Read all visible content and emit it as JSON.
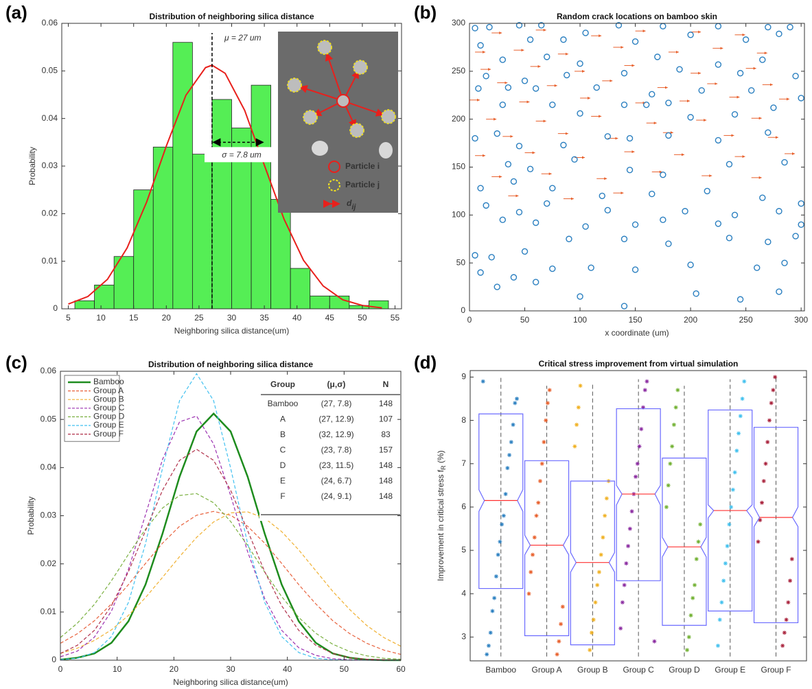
{
  "chart_data": [
    {
      "type": "histogram",
      "panel_label": "(a)",
      "title": "Distribution of neighboring silica distance",
      "x_label": "Neighboring silica distance(um)",
      "y_label": "Probability",
      "bins": [
        6,
        9,
        12,
        15,
        18,
        21,
        24,
        27,
        30,
        33,
        36,
        39,
        42,
        45,
        48,
        51,
        54
      ],
      "values": [
        0.0017,
        0.005,
        0.011,
        0.025,
        0.034,
        0.056,
        0.0325,
        0.044,
        0.038,
        0.047,
        0.023,
        0.0085,
        0.0027,
        0.0027,
        0.0007,
        0.0017
      ],
      "color": "#55ee55",
      "fit": {
        "color": "#e8201c",
        "x": [
          5,
          8,
          11,
          14,
          17,
          20,
          23,
          26,
          27,
          29,
          32,
          35,
          38,
          41,
          44,
          47,
          50,
          53
        ],
        "values": [
          0.001,
          0.0026,
          0.0062,
          0.0128,
          0.0225,
          0.0342,
          0.0449,
          0.0507,
          0.0512,
          0.0495,
          0.0417,
          0.0302,
          0.0189,
          0.0102,
          0.0048,
          0.0019,
          0.0007,
          0.0002
        ]
      },
      "mean_line": 27,
      "mean_label": "μ = 27 um",
      "sigma_arrow": [
        27,
        34.8
      ],
      "sigma_arrow_y": 0.035,
      "sigma_label": "σ = 7.8 um",
      "inset": {
        "labels": [
          "Particle i",
          "Particle j"
        ],
        "arrow_label": "d",
        "arrow_label_sub": "ij"
      },
      "xlim": [
        4,
        56
      ],
      "ylim": [
        0,
        0.06
      ],
      "xticks": [
        5,
        10,
        15,
        20,
        25,
        30,
        35,
        40,
        45,
        50,
        55
      ],
      "yticks": [
        0,
        0.01,
        0.02,
        0.03,
        0.04,
        0.05,
        0.06
      ]
    },
    {
      "type": "scatter",
      "panel_label": "(b)",
      "title": "Random crack locations on bamboo skin",
      "x_label": "x coordinate (um)",
      "circles": {
        "color": "#2a7fc0",
        "x": [
          5,
          18,
          45,
          65,
          135,
          175,
          225,
          270,
          290,
          10,
          55,
          85,
          105,
          150,
          200,
          250,
          280,
          30,
          70,
          100,
          170,
          225,
          265,
          15,
          50,
          88,
          140,
          190,
          245,
          295,
          8,
          35,
          60,
          115,
          165,
          210,
          255,
          30,
          75,
          140,
          160,
          180,
          275,
          100,
          200,
          240,
          300,
          5,
          25,
          45,
          85,
          125,
          145,
          180,
          225,
          270,
          35,
          55,
          95,
          145,
          175,
          235,
          285,
          10,
          40,
          75,
          120,
          165,
          215,
          265,
          300,
          15,
          45,
          70,
          125,
          195,
          240,
          280,
          30,
          60,
          105,
          150,
          175,
          225,
          300,
          5,
          20,
          50,
          90,
          140,
          180,
          235,
          270,
          295,
          10,
          40,
          75,
          110,
          150,
          200,
          260,
          285,
          25,
          60,
          100,
          140,
          205,
          245,
          280
        ],
        "y": [
          295,
          296,
          298,
          298,
          298,
          297,
          297,
          296,
          296,
          277,
          283,
          283,
          290,
          281,
          288,
          283,
          289,
          262,
          265,
          258,
          265,
          257,
          262,
          245,
          240,
          246,
          248,
          252,
          248,
          245,
          232,
          233,
          232,
          233,
          226,
          230,
          230,
          215,
          215,
          215,
          215,
          217,
          212,
          206,
          202,
          205,
          222,
          180,
          185,
          172,
          173,
          182,
          180,
          183,
          178,
          186,
          153,
          148,
          158,
          147,
          142,
          153,
          155,
          128,
          135,
          128,
          120,
          122,
          125,
          118,
          112,
          110,
          103,
          112,
          105,
          104,
          100,
          104,
          95,
          92,
          88,
          90,
          95,
          91,
          90,
          58,
          56,
          62,
          75,
          75,
          70,
          76,
          72,
          78,
          40,
          35,
          44,
          45,
          43,
          48,
          45,
          50,
          25,
          30,
          15,
          5,
          18,
          12,
          20
        ]
      },
      "arrows": {
        "color": "#e8602c",
        "x": [
          20,
          60,
          110,
          150,
          200,
          240,
          5,
          40,
          80,
          130,
          180,
          220,
          260,
          10,
          55,
          95,
          140,
          200,
          250,
          25,
          70,
          120,
          170,
          215,
          265,
          0,
          45,
          100,
          150,
          190,
          235,
          280,
          15,
          60,
          110,
          160,
          205,
          255,
          30,
          80,
          125,
          175,
          230,
          270,
          5,
          50,
          95,
          140,
          185,
          240,
          285,
          20,
          65,
          115,
          165,
          210,
          255,
          35,
          85,
          130
        ],
        "y": [
          290,
          293,
          287,
          292,
          291,
          288,
          270,
          272,
          268,
          275,
          270,
          274,
          269,
          252,
          255,
          250,
          256,
          248,
          253,
          238,
          235,
          240,
          233,
          237,
          236,
          220,
          218,
          222,
          217,
          219,
          223,
          221,
          200,
          198,
          203,
          196,
          199,
          201,
          182,
          185,
          180,
          186,
          183,
          181,
          162,
          165,
          160,
          166,
          163,
          161,
          164,
          140,
          143,
          138,
          145,
          141,
          139,
          120,
          117,
          123
        ]
      },
      "xlim": [
        0,
        303
      ],
      "ylim": [
        0,
        300
      ],
      "xticks": [
        0,
        50,
        100,
        150,
        200,
        250,
        300
      ],
      "yticks": [
        0,
        50,
        100,
        150,
        200,
        250,
        300
      ]
    },
    {
      "type": "line",
      "panel_label": "(c)",
      "title": "Distribution of neighboring silica distance",
      "x_label": "Neighboring silica distance(um)",
      "y_label": "Probability",
      "x": [
        0,
        3,
        6,
        9,
        12,
        15,
        18,
        21,
        24,
        27,
        30,
        33,
        36,
        39,
        42,
        45,
        48,
        51,
        54,
        57,
        60
      ],
      "series": [
        {
          "name": "Bamboo",
          "color": "#1e8c1e",
          "dash": "solid",
          "values": [
            0.0001,
            0.0005,
            0.0014,
            0.0036,
            0.0081,
            0.0157,
            0.0263,
            0.0381,
            0.0475,
            0.0512,
            0.0475,
            0.0381,
            0.0263,
            0.0157,
            0.0081,
            0.0036,
            0.0014,
            0.0005,
            0.0001,
            0,
            0
          ]
        },
        {
          "name": "Group A",
          "color": "#e8613c",
          "dash": "dashed",
          "values": [
            0.0035,
            0.0055,
            0.0082,
            0.0117,
            0.0157,
            0.0201,
            0.0243,
            0.0278,
            0.0301,
            0.0309,
            0.0301,
            0.0278,
            0.0243,
            0.0201,
            0.0157,
            0.0117,
            0.0082,
            0.0055,
            0.0035,
            0.0021,
            0.0012
          ]
        },
        {
          "name": "Group B",
          "color": "#f0b030",
          "dash": "dashed",
          "values": [
            0.0014,
            0.0025,
            0.0041,
            0.0063,
            0.0093,
            0.013,
            0.0172,
            0.0215,
            0.0255,
            0.0287,
            0.0306,
            0.0308,
            0.0295,
            0.0267,
            0.0229,
            0.0186,
            0.0143,
            0.0105,
            0.0072,
            0.0047,
            0.0029
          ]
        },
        {
          "name": "Group C",
          "color": "#9b30b0",
          "dash": "dashed",
          "values": [
            0.0007,
            0.0019,
            0.0048,
            0.0102,
            0.0189,
            0.0302,
            0.0417,
            0.0495,
            0.0507,
            0.0449,
            0.0342,
            0.0225,
            0.0128,
            0.0062,
            0.0026,
            0.001,
            0.0003,
            0.0001,
            0,
            0,
            0
          ]
        },
        {
          "name": "Group D",
          "color": "#7ab040",
          "dash": "dashed",
          "values": [
            0.0047,
            0.0077,
            0.0116,
            0.0165,
            0.022,
            0.0272,
            0.0316,
            0.0342,
            0.0346,
            0.0327,
            0.0288,
            0.0238,
            0.0183,
            0.0132,
            0.0089,
            0.0056,
            0.0033,
            0.0018,
            0.0009,
            0.0004,
            0.0002
          ]
        },
        {
          "name": "Group E",
          "color": "#40c0f0",
          "dash": "dashed",
          "values": [
            0.0001,
            0.0004,
            0.0016,
            0.0049,
            0.012,
            0.0242,
            0.0399,
            0.0539,
            0.0595,
            0.0539,
            0.0399,
            0.0242,
            0.012,
            0.0049,
            0.0016,
            0.0004,
            0.0001,
            0,
            0,
            0,
            0
          ]
        },
        {
          "name": "Group F",
          "color": "#b0304a",
          "dash": "dashed",
          "values": [
            0.0014,
            0.0031,
            0.0062,
            0.0113,
            0.0184,
            0.0269,
            0.0353,
            0.0415,
            0.0438,
            0.0415,
            0.0353,
            0.0269,
            0.0184,
            0.0113,
            0.0062,
            0.0031,
            0.0014,
            0.0005,
            0.0002,
            0.0001,
            0
          ]
        }
      ],
      "legend": "upper left",
      "table": {
        "header": [
          "Group",
          "(μ,σ)",
          "N"
        ],
        "rows": [
          [
            "Bamboo",
            "(27, 7.8)",
            148
          ],
          [
            "A",
            "(27, 12.9)",
            107
          ],
          [
            "B",
            "(32, 12.9)",
            83
          ],
          [
            "C",
            "(23, 7.8)",
            157
          ],
          [
            "D",
            "(23, 11.5)",
            148
          ],
          [
            "E",
            "(24, 6.7)",
            148
          ],
          [
            "F",
            "(24, 9.1)",
            148
          ]
        ]
      },
      "xlim": [
        0,
        60
      ],
      "ylim": [
        0,
        0.06
      ],
      "xticks": [
        0,
        10,
        20,
        30,
        40,
        50,
        60
      ],
      "yticks": [
        0,
        0.01,
        0.02,
        0.03,
        0.04,
        0.05,
        0.06
      ]
    },
    {
      "type": "box",
      "panel_label": "(d)",
      "title": "Critical stress improvement from virtual simulation",
      "y_label": "Improvement in critical stress  f",
      "y_label_sub": "R",
      "y_label_unit": " (%)",
      "box_color": "#6a6aff",
      "median_color": "#ff3030",
      "groups": [
        {
          "name": "Bamboo",
          "color": "#2a7fc0",
          "q1": 4.12,
          "median": 6.15,
          "q3": 8.15,
          "notch": [
            5.9,
            6.4
          ],
          "whisker": [
            2.55,
            9.0
          ],
          "points": [
            8.9,
            8.5,
            8.4,
            7.9,
            7.5,
            7.2,
            6.9,
            6.3,
            5.8,
            5.6,
            5.2,
            4.9,
            4.4,
            3.9,
            3.6,
            3.1,
            2.8,
            2.6
          ]
        },
        {
          "name": "Group A",
          "color": "#e8602c",
          "q1": 3.03,
          "median": 5.12,
          "q3": 7.07,
          "notch": [
            4.9,
            5.35
          ],
          "whisker": [
            2.55,
            8.8
          ],
          "points": [
            8.7,
            8.4,
            8.0,
            7.5,
            7.0,
            6.6,
            6.1,
            5.8,
            5.3,
            4.9,
            4.5,
            4.0,
            3.7,
            3.3,
            2.9,
            2.6
          ]
        },
        {
          "name": "Group B",
          "color": "#f0b020",
          "q1": 2.82,
          "median": 4.72,
          "q3": 6.6,
          "notch": [
            4.5,
            4.95
          ],
          "whisker": [
            2.55,
            8.85
          ],
          "points": [
            8.8,
            8.3,
            7.9,
            7.4,
            6.6,
            6.2,
            5.8,
            5.3,
            4.9,
            4.5,
            4.2,
            3.8,
            3.4,
            3.1,
            2.7
          ]
        },
        {
          "name": "Group C",
          "color": "#8a2aa0",
          "q1": 4.3,
          "median": 6.3,
          "q3": 8.27,
          "notch": [
            6.05,
            6.5
          ],
          "whisker": [
            2.55,
            8.95
          ],
          "points": [
            8.9,
            8.7,
            8.3,
            7.8,
            7.4,
            7.0,
            6.7,
            6.3,
            5.9,
            5.5,
            5.1,
            4.7,
            4.2,
            3.8,
            3.2,
            2.9
          ]
        },
        {
          "name": "Group D",
          "color": "#70b030",
          "q1": 3.27,
          "median": 5.08,
          "q3": 7.13,
          "notch": [
            4.85,
            5.3
          ],
          "whisker": [
            2.55,
            8.8
          ],
          "points": [
            8.7,
            8.3,
            7.9,
            7.4,
            7.0,
            6.5,
            6.0,
            5.6,
            5.2,
            4.8,
            4.2,
            3.9,
            3.5,
            3.0,
            2.7
          ]
        },
        {
          "name": "Group E",
          "color": "#40c0ee",
          "q1": 3.6,
          "median": 5.92,
          "q3": 8.24,
          "notch": [
            5.75,
            6.05
          ],
          "whisker": [
            2.55,
            8.95
          ],
          "points": [
            8.9,
            8.5,
            8.1,
            7.7,
            7.3,
            6.8,
            6.4,
            6.0,
            5.6,
            5.1,
            4.7,
            4.3,
            3.8,
            3.4,
            2.8
          ]
        },
        {
          "name": "Group F",
          "color": "#a8203a",
          "q1": 3.33,
          "median": 5.76,
          "q3": 7.84,
          "notch": [
            5.55,
            6.0
          ],
          "whisker": [
            2.55,
            9.0
          ],
          "points": [
            9.0,
            8.7,
            8.4,
            8.0,
            7.5,
            7.0,
            6.6,
            6.1,
            5.7,
            5.2,
            4.8,
            4.3,
            3.8,
            3.4,
            3.1,
            2.8
          ]
        }
      ],
      "ylim": [
        2.45,
        9.15
      ],
      "yticks": [
        3,
        4,
        5,
        6,
        7,
        8,
        9
      ]
    }
  ]
}
